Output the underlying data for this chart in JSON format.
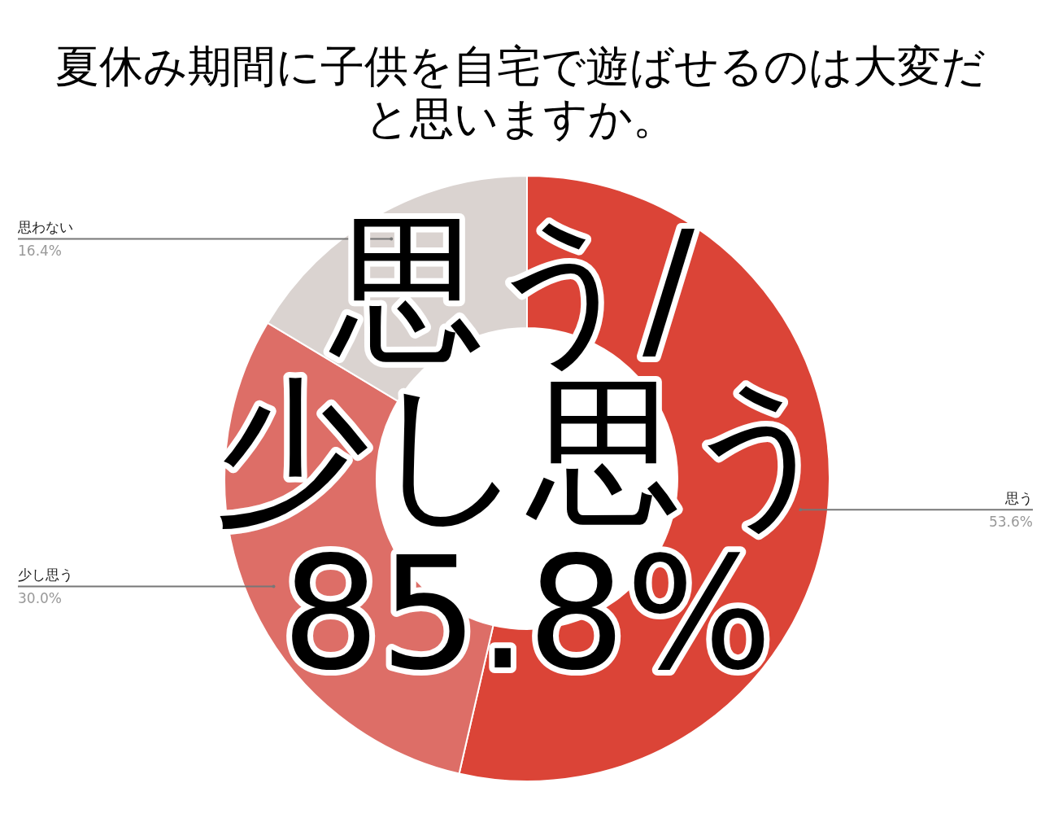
{
  "chart_data": {
    "type": "donut",
    "title": "夏休み期間に子供を自宅で遊ばせるのは大変だと思いますか。",
    "categories": [
      "思う",
      "少し思う",
      "思わない"
    ],
    "values": [
      53.6,
      30.0,
      16.4
    ],
    "value_labels": [
      "53.6%",
      "30.0%",
      "16.4%"
    ],
    "colors": [
      "#db4437",
      "#dd6e67",
      "#dad3d0"
    ],
    "annotations": [
      "思う/",
      "少し思う",
      "85.8%"
    ]
  }
}
